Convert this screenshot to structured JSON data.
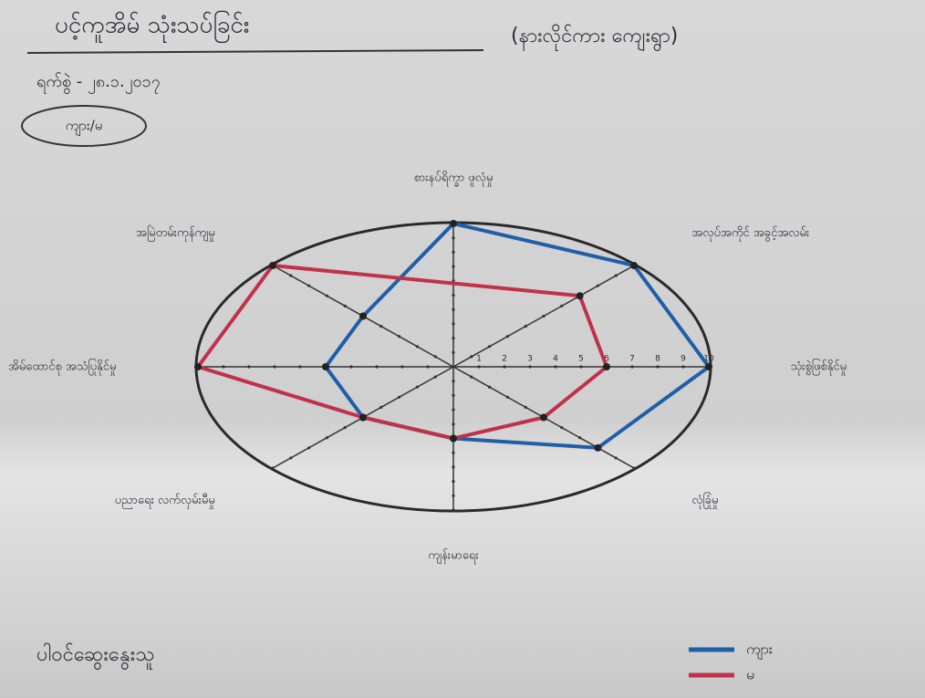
{
  "chart_data": {
    "type": "radar",
    "title": "ပင့်ကူအိမ် သုံးသပ်ခြင်း",
    "subtitle": "(နားလိုင်ကား ကျေးရွာ)",
    "date_label": "ရက်စွဲ - ၂၈.၁.၂၀၁၇",
    "group_tag": "ကျား/မ",
    "footer": "ပါဝင်ဆွေးနွေးသူ",
    "categories": [
      "စားနပ်ရိက္ခာ ဖူလုံမှု",
      "အလုပ်အကိုင် အခွင့်အလမ်း",
      "သုံးစွဲဖြစ်နိုင်မှု",
      "လုံခြုံမှု",
      "ကျန်းမာရေး",
      "ပညာရေး လက်လှမ်းမီမှု",
      "အိမ်ထောင်စု အသံပြုနိုင်မှု",
      "အမြဲတမ်းကုန်ကျမှု"
    ],
    "rlim": [
      0,
      10
    ],
    "rticks": [
      1,
      2,
      3,
      4,
      5,
      6,
      7,
      8,
      9,
      10
    ],
    "series": [
      {
        "name": "ကျား",
        "color": "#1f5fa8",
        "values": [
          10,
          10,
          10,
          8,
          5,
          5,
          5,
          5
        ]
      },
      {
        "name": "မ",
        "color": "#c0324a",
        "values": [
          null,
          7,
          6,
          5,
          5,
          5,
          10,
          10
        ]
      }
    ]
  }
}
